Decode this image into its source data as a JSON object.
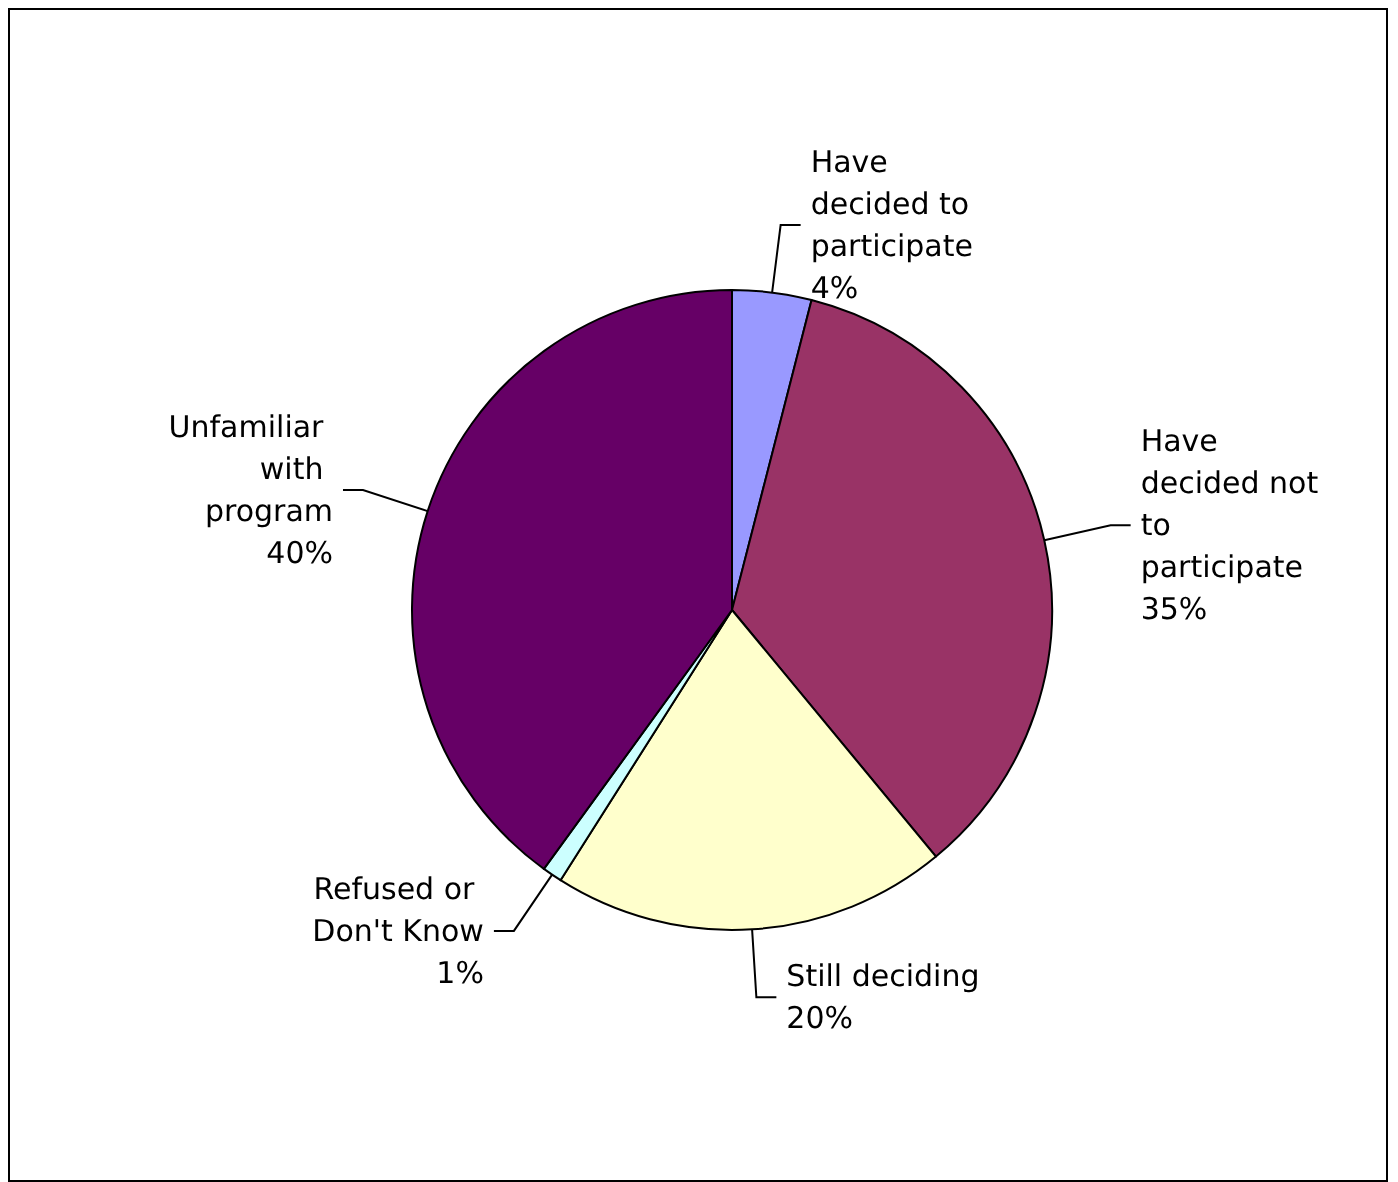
{
  "chart_data": {
    "type": "pie",
    "categories": [
      "Have decided to participate",
      "Have decided not to participate",
      "Still deciding",
      "Refused or Don't Know",
      "Unfamiliar with program"
    ],
    "values": [
      4,
      35,
      20,
      1,
      40
    ],
    "value_labels": [
      "4%",
      "35%",
      "20%",
      "1%",
      "40%"
    ],
    "colors": [
      "#9999ff",
      "#993366",
      "#ffffcc",
      "#ccffff",
      "#660066"
    ],
    "legend": false
  }
}
